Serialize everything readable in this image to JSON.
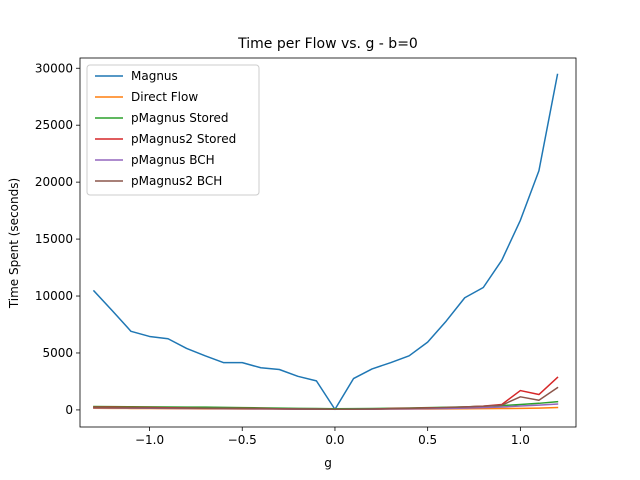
{
  "chart_data": {
    "type": "line",
    "title": "Time per Flow vs. g - b=0",
    "xlabel": "g",
    "ylabel": "Time Spent (seconds)",
    "xlim": [
      -1.375,
      1.3
    ],
    "ylim": [
      -1500,
      30900
    ],
    "xticks": [
      -1.0,
      -0.5,
      0.0,
      0.5,
      1.0
    ],
    "xtick_labels": [
      "−1.0",
      "−0.5",
      "0.0",
      "0.5",
      "1.0"
    ],
    "yticks": [
      0,
      5000,
      10000,
      15000,
      20000,
      25000,
      30000
    ],
    "ytick_labels": [
      "0",
      "5000",
      "10000",
      "15000",
      "20000",
      "25000",
      "30000"
    ],
    "legend_position": "upper-left",
    "grid": false,
    "x": [
      -1.3,
      -1.2,
      -1.1,
      -1.0,
      -0.9,
      -0.8,
      -0.7,
      -0.6,
      -0.5,
      -0.4,
      -0.3,
      -0.2,
      -0.1,
      0.0,
      0.1,
      0.2,
      0.3,
      0.4,
      0.5,
      0.6,
      0.7,
      0.8,
      0.9,
      1.0,
      1.1,
      1.2
    ],
    "series": [
      {
        "name": "Magnus",
        "color": "#1f77b4",
        "values": [
          10450,
          8700,
          6900,
          6450,
          6250,
          5400,
          4750,
          4150,
          4150,
          3700,
          3550,
          2950,
          2550,
          50,
          2750,
          3600,
          4150,
          4750,
          5950,
          7800,
          9850,
          10750,
          13150,
          16650,
          21000,
          29450
        ]
      },
      {
        "name": "Direct Flow",
        "color": "#ff7f0e",
        "values": [
          150,
          140,
          130,
          120,
          110,
          100,
          95,
          90,
          85,
          80,
          75,
          70,
          65,
          60,
          65,
          70,
          75,
          80,
          85,
          90,
          100,
          110,
          120,
          140,
          160,
          210
        ]
      },
      {
        "name": "pMagnus Stored",
        "color": "#2ca02c",
        "values": [
          300,
          290,
          280,
          270,
          260,
          250,
          240,
          220,
          200,
          180,
          160,
          140,
          120,
          100,
          110,
          130,
          150,
          170,
          200,
          230,
          270,
          320,
          380,
          480,
          580,
          720
        ]
      },
      {
        "name": "pMagnus2 Stored",
        "color": "#d62728",
        "values": [
          250,
          240,
          220,
          210,
          190,
          170,
          150,
          140,
          140,
          120,
          90,
          70,
          70,
          60,
          60,
          60,
          120,
          150,
          180,
          200,
          260,
          330,
          480,
          1700,
          1350,
          2850
        ]
      },
      {
        "name": "pMagnus BCH",
        "color": "#9467bd",
        "values": [
          180,
          170,
          160,
          150,
          140,
          130,
          120,
          110,
          100,
          90,
          80,
          70,
          65,
          60,
          65,
          70,
          80,
          90,
          110,
          130,
          160,
          200,
          260,
          340,
          420,
          520
        ]
      },
      {
        "name": "pMagnus2 BCH",
        "color": "#8c564b",
        "values": [
          210,
          200,
          190,
          180,
          170,
          160,
          150,
          140,
          130,
          120,
          100,
          80,
          70,
          60,
          60,
          80,
          110,
          140,
          170,
          210,
          260,
          320,
          420,
          1150,
          850,
          1950
        ]
      }
    ]
  }
}
